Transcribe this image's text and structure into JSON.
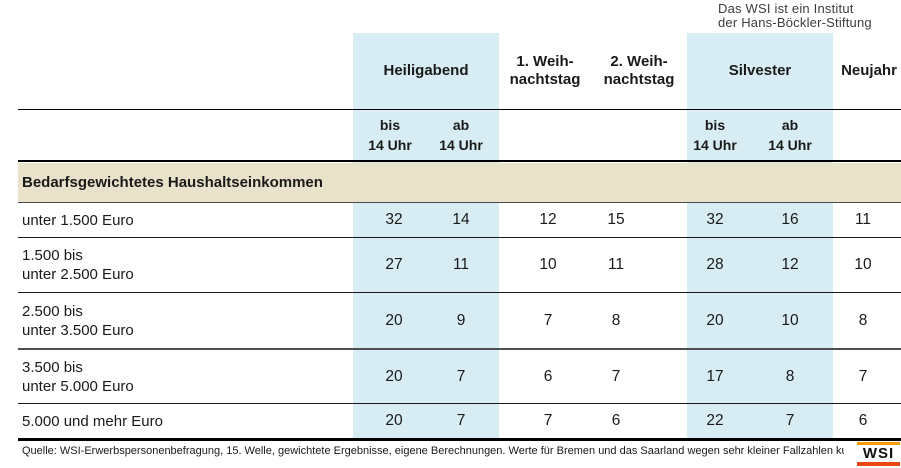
{
  "page": {
    "institute_note": {
      "line1": "Das WSI ist ein Institut",
      "line2": "der Hans-Böckler-Stiftung"
    }
  },
  "table": {
    "column_groups": [
      {
        "label": "Heiligabend",
        "highlighted": true,
        "subcolumns": [
          "bis 14 Uhr",
          "ab 14 Uhr"
        ]
      },
      {
        "label_line1": "1. Weih-",
        "label_line2": "nachtstag",
        "highlighted": false
      },
      {
        "label_line1": "2. Weih-",
        "label_line2": "nachtstag",
        "highlighted": false
      },
      {
        "label": "Silvester",
        "highlighted": true,
        "subcolumns": [
          "bis 14 Uhr",
          "ab 14 Uhr"
        ]
      },
      {
        "label": "Neujahr",
        "highlighted": false
      }
    ],
    "subheaders": [
      {
        "line1": "bis",
        "line2": "14 Uhr"
      },
      {
        "line1": "ab",
        "line2": "14 Uhr"
      },
      {
        "line1": "bis",
        "line2": "14 Uhr"
      },
      {
        "line1": "ab",
        "line2": "14 Uhr"
      }
    ],
    "section_title": "Bedarfsgewichtetes Haushaltseinkommen",
    "rows": [
      {
        "label_line1": "unter 1.500 Euro",
        "label_line2": "",
        "values": [
          32,
          14,
          12,
          15,
          32,
          16,
          11
        ]
      },
      {
        "label_line1": "1.500 bis",
        "label_line2": "unter 2.500 Euro",
        "values": [
          27,
          11,
          10,
          11,
          28,
          12,
          10
        ]
      },
      {
        "label_line1": "2.500 bis",
        "label_line2": "unter 3.500 Euro",
        "values": [
          20,
          9,
          7,
          8,
          20,
          10,
          8
        ]
      },
      {
        "label_line1": "3.500 bis",
        "label_line2": "unter 5.000 Euro",
        "values": [
          20,
          7,
          6,
          7,
          17,
          8,
          7
        ]
      },
      {
        "label_line1": "5.000 und mehr Euro",
        "label_line2": "",
        "values": [
          20,
          7,
          7,
          6,
          22,
          7,
          6
        ]
      }
    ]
  },
  "footer": {
    "source": "Quelle: WSI-Erwerbspersonenbefragung, 15. Welle, gewichtete Ergebnisse, eigene Berechnungen. Werte für Bremen und das Saarland wegen sehr kleiner Fallzahlen kursiv.",
    "logo_text": "WSI"
  },
  "colors": {
    "highlight_blue": "#d7ecf3",
    "section_band_beige": "#e8e2ca",
    "logo_orange_top": "#f59b00",
    "logo_orange_bottom": "#e8490f"
  },
  "chart_data": {
    "type": "table",
    "title": "Bedarfsgewichtetes Haushaltseinkommen",
    "columns": [
      "Heiligabend bis 14 Uhr",
      "Heiligabend ab 14 Uhr",
      "1. Weihnachtstag",
      "2. Weihnachtstag",
      "Silvester bis 14 Uhr",
      "Silvester ab 14 Uhr",
      "Neujahr"
    ],
    "categories": [
      "unter 1.500 Euro",
      "1.500 bis unter 2.500 Euro",
      "2.500 bis unter 3.500 Euro",
      "3.500 bis unter 5.000 Euro",
      "5.000 und mehr Euro"
    ],
    "series": [
      {
        "name": "Heiligabend bis 14 Uhr",
        "values": [
          32,
          27,
          20,
          20,
          20
        ]
      },
      {
        "name": "Heiligabend ab 14 Uhr",
        "values": [
          14,
          11,
          9,
          7,
          7
        ]
      },
      {
        "name": "1. Weihnachtstag",
        "values": [
          12,
          10,
          7,
          6,
          7
        ]
      },
      {
        "name": "2. Weihnachtstag",
        "values": [
          15,
          11,
          8,
          7,
          6
        ]
      },
      {
        "name": "Silvester bis 14 Uhr",
        "values": [
          32,
          28,
          20,
          17,
          22
        ]
      },
      {
        "name": "Silvester ab 14 Uhr",
        "values": [
          16,
          12,
          10,
          8,
          7
        ]
      },
      {
        "name": "Neujahr",
        "values": [
          11,
          10,
          8,
          7,
          6
        ]
      }
    ]
  }
}
